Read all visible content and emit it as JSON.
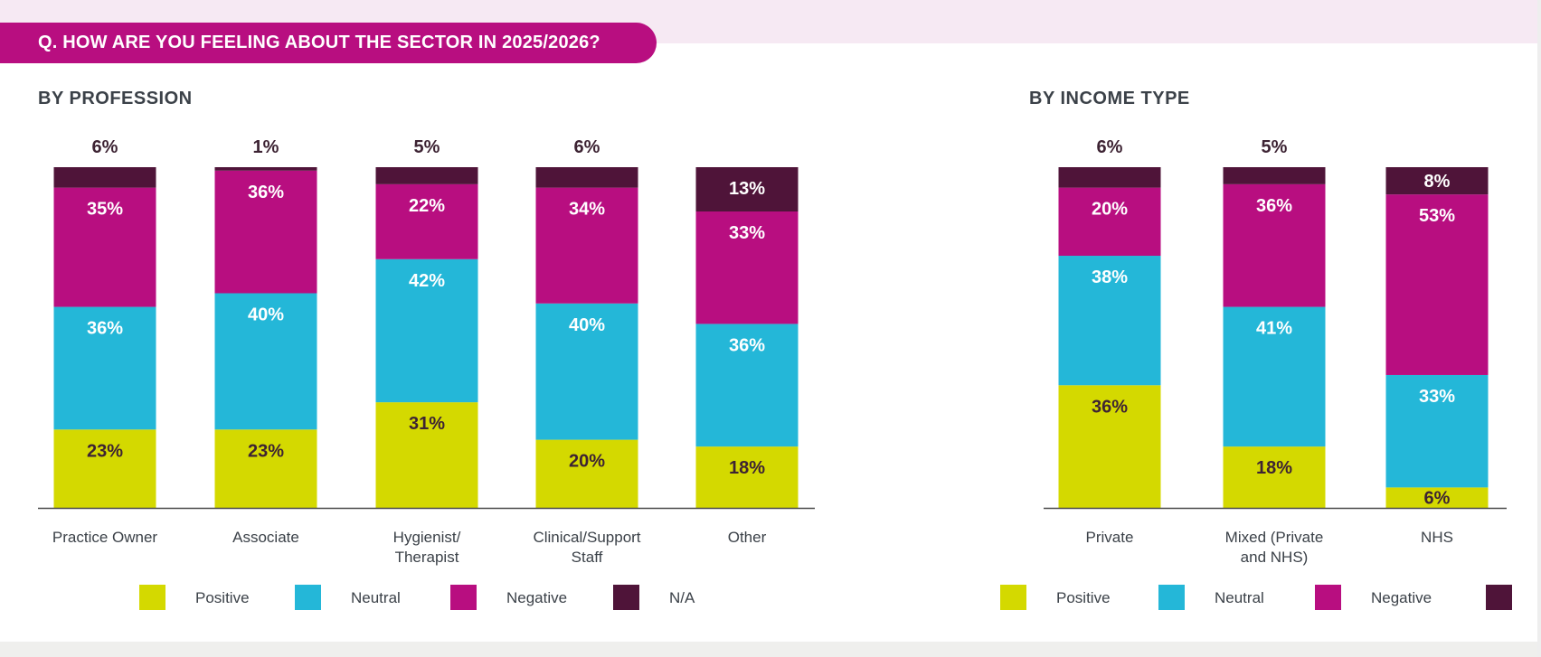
{
  "question": "Q. HOW ARE YOU FEELING ABOUT THE SECTOR IN 2025/2026?",
  "colors": {
    "positive": "#d4d900",
    "neutral": "#24b7d8",
    "negative": "#b80e80",
    "na": "#4f1439",
    "header": "#b80e80",
    "title_text": "#3b4148",
    "dark_label": "#3d2333"
  },
  "chart_data": [
    {
      "type": "bar",
      "stacked": true,
      "title": "BY PROFESSION",
      "categories": [
        "Practice Owner",
        "Associate",
        "Hygienist/\nTherapist",
        "Clinical/Support\nStaff",
        "Other"
      ],
      "series": [
        {
          "name": "Positive",
          "values": [
            23,
            23,
            31,
            20,
            18
          ]
        },
        {
          "name": "Neutral",
          "values": [
            36,
            40,
            42,
            40,
            36
          ]
        },
        {
          "name": "Negative",
          "values": [
            35,
            36,
            22,
            34,
            33
          ]
        },
        {
          "name": "N/A",
          "values": [
            6,
            1,
            5,
            6,
            13
          ]
        }
      ],
      "ylim": [
        0,
        100
      ],
      "legend": "bottom",
      "grid": false
    },
    {
      "type": "bar",
      "stacked": true,
      "title": "BY INCOME TYPE",
      "categories": [
        "Private",
        "Mixed (Private\nand NHS)",
        "NHS"
      ],
      "series": [
        {
          "name": "Positive",
          "values": [
            36,
            18,
            6
          ]
        },
        {
          "name": "Neutral",
          "values": [
            38,
            41,
            33
          ]
        },
        {
          "name": "Negative",
          "values": [
            20,
            36,
            53
          ]
        },
        {
          "name": "N/A",
          "values": [
            6,
            5,
            8
          ]
        }
      ],
      "ylim": [
        0,
        100
      ],
      "legend": "bottom",
      "grid": false
    }
  ],
  "legends": [
    {
      "items": [
        "Positive",
        "Neutral",
        "Negative",
        "N/A"
      ]
    },
    {
      "items": [
        "Positive",
        "Neutral",
        "Negative",
        ""
      ]
    }
  ]
}
